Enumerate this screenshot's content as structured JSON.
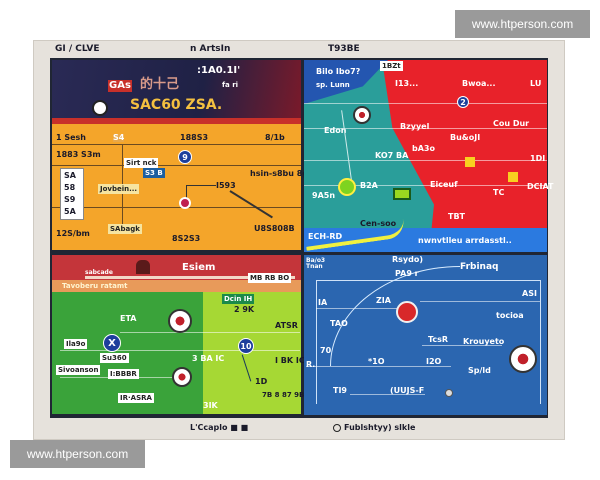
{
  "watermark": "www.htperson.com",
  "header": {
    "left": "GI / CLVE",
    "center": "n ArtsIn",
    "right": "T93BE"
  },
  "footer": {
    "left": "L'Ccaplo ■ ■",
    "right": "Fublshtyy) slkle"
  },
  "top_left": {
    "banner": {
      "time": ":1A0.1I'",
      "logo_tag": "GAs",
      "title_cjk": "的十己",
      "title": "SAC60 ZSA.",
      "sub": "fa ri"
    },
    "row1": [
      "1 Sesh",
      "S4",
      "188S3",
      "8/1b"
    ],
    "labels": [
      "1883 S3m",
      "Sirt nck",
      "S3 B",
      "hsin-s8bu 8g8bu",
      "Jovbein...",
      "I593",
      "12S/bm",
      "SAbagk",
      "8S2S3",
      "U8S808B"
    ],
    "side_list": [
      "SA",
      "58",
      "S9",
      "5A"
    ],
    "badge": "9"
  },
  "top_right": {
    "labels": [
      "Bilo Ibo7?",
      "sp. Lunn",
      "1BZt",
      "I13...",
      "Bwoa...",
      "LU",
      "B2A",
      "Edon",
      "Bzyyel",
      "Bu&oJI",
      "bA3o",
      "KO7 BA",
      "Cou Dur",
      "TBT",
      "1DI",
      "Eiceuf",
      "9A5n",
      "DCIAT",
      "TC",
      "Cen-soo",
      "ECH-RD",
      "AB",
      "nwnvtlleu arrdasstl.."
    ],
    "badge": "2"
  },
  "bottom_left": {
    "title": "Esiem",
    "left_bar": "sabcade",
    "right_bar": "MB RB BO",
    "strip": "Tavoberu ratamt",
    "green_box": "Dcin IH",
    "labels": [
      "ETA",
      "Ila9o",
      "Su360",
      "Sivoanson",
      "I:BBBR",
      "IR·ASRA",
      "2 9K",
      "ATSR",
      "3 BA IC",
      "I BK IC",
      "1D",
      "7B 8 87 9B8SS",
      "3IK"
    ],
    "badge_x": "X",
    "badge_10": "10"
  },
  "bottom_right": {
    "labels": [
      "Rsydo)",
      "PA9 r",
      "Frbinaq",
      "Ba/o3 Tnan",
      "ASI",
      "IA",
      "ZIA",
      "TAO",
      "tocioa",
      "70",
      "TcsR",
      "Krouyeto",
      "R.",
      "*1O",
      "I2O",
      "Sp/ld",
      "TI9",
      "(UUJS-F"
    ]
  },
  "colors": {
    "navy": "#23244a",
    "orange": "#f4a52a",
    "teal": "#2a9e9a",
    "red": "#e8222a",
    "blue": "#2b66b0",
    "green": "#3aa33a",
    "lime": "#a6d834",
    "header_red": "#c4353a"
  }
}
